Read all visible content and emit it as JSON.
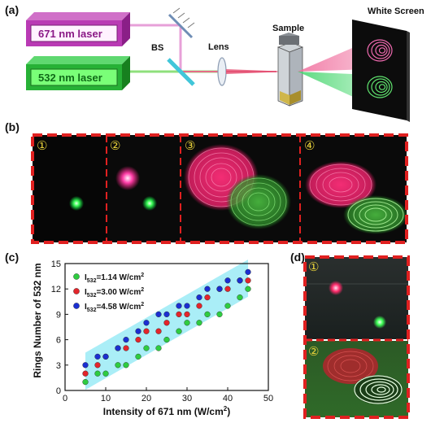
{
  "panel_a": {
    "label": "(a)",
    "laser_671": "671 nm laser",
    "laser_532": "532 nm laser",
    "bs": "BS",
    "lens": "Lens",
    "sample": "Sample",
    "screen": "White Screen"
  },
  "panel_b": {
    "label": "(b)",
    "subs": [
      "①",
      "②",
      "③",
      "④"
    ]
  },
  "panel_c": {
    "label": "(c)",
    "chart_data": {
      "type": "scatter",
      "xlabel": "Intensity of 671 nm (W/cm²)",
      "ylabel": "Rings Number of 532 nm",
      "xlim": [
        0,
        50
      ],
      "ylim": [
        0,
        15
      ],
      "xticks": [
        0,
        10,
        20,
        30,
        40,
        50
      ],
      "yticks": [
        0,
        3,
        6,
        9,
        12,
        15
      ],
      "x": [
        5,
        8,
        10,
        13,
        15,
        18,
        20,
        23,
        25,
        28,
        30,
        33,
        35,
        38,
        40,
        43,
        45
      ],
      "series": [
        {
          "name": "I532=1.14 W/cm2",
          "color": "#2ecc40",
          "values": [
            1,
            2,
            2,
            3,
            3,
            4,
            5,
            5,
            6,
            7,
            8,
            8,
            9,
            9,
            10,
            11,
            12
          ]
        },
        {
          "name": "I532=3.00 W/cm2",
          "color": "#e3252b",
          "values": [
            2,
            3,
            4,
            5,
            5,
            6,
            7,
            7,
            8,
            9,
            9,
            10,
            11,
            12,
            12,
            13,
            13
          ]
        },
        {
          "name": "I532=4.58 W/cm2",
          "color": "#1b2fd1",
          "values": [
            3,
            4,
            4,
            5,
            6,
            7,
            8,
            9,
            9,
            10,
            10,
            11,
            12,
            12,
            13,
            13,
            14
          ]
        }
      ],
      "legend": [
        {
          "main": "I",
          "sub": "532",
          "rest": "=1.14 W/cm",
          "sup": "2"
        },
        {
          "main": "I",
          "sub": "532",
          "rest": "=3.00 W/cm",
          "sup": "2"
        },
        {
          "main": "I",
          "sub": "532",
          "rest": "=4.58 W/cm",
          "sup": "2"
        }
      ],
      "legend_position": "top-left"
    },
    "xlabel_main": "Intensity of 671 nm (W/cm",
    "xlabel_sup": "2",
    "xlabel_end": ")",
    "ylabel": "Rings Number of 532 nm"
  },
  "panel_d": {
    "label": "(d)",
    "subs": [
      "①",
      "②"
    ]
  }
}
